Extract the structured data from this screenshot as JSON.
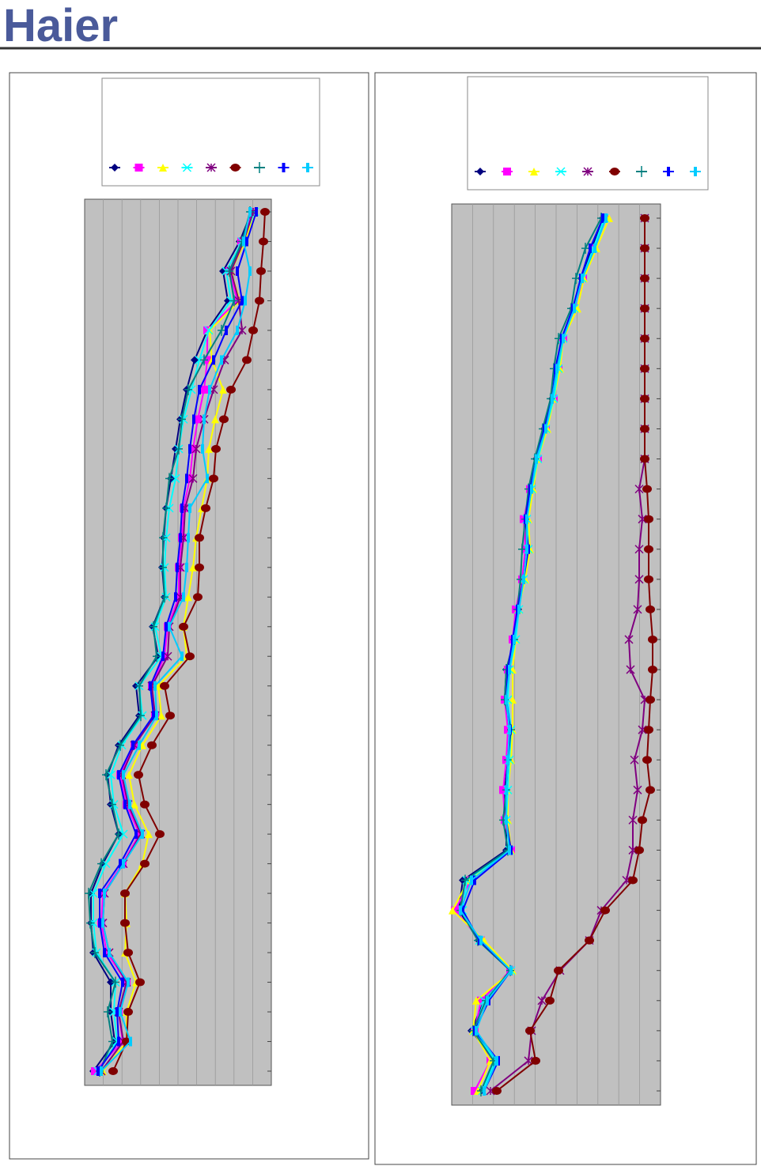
{
  "logo": "Haier",
  "chart_data": [
    {
      "type": "line",
      "orientation": "horizontal",
      "grid": true,
      "xlim": [
        107,
        343
      ],
      "categories": [
        null,
        null,
        null,
        null,
        null,
        null,
        null,
        null,
        null,
        null,
        null,
        null,
        null,
        null,
        null,
        null,
        null,
        null,
        null,
        null,
        null,
        null,
        null,
        null,
        null,
        null,
        null,
        null,
        null,
        null
      ],
      "series": [
        {
          "color": "#000080",
          "marker": "diamond",
          "values": [
            318,
            303,
            282,
            288,
            262,
            246,
            236,
            228,
            222,
            216,
            210,
            207,
            205,
            208,
            193,
            200,
            172,
            176,
            150,
            136,
            140,
            150,
            130,
            115,
            115,
            118,
            140,
            140,
            145,
            118
          ]
        },
        {
          "color": "#ff00ff",
          "marker": "square",
          "values": [
            320,
            305,
            290,
            300,
            262,
            262,
            258,
            250,
            244,
            240,
            232,
            230,
            226,
            226,
            212,
            208,
            192,
            196,
            170,
            152,
            160,
            176,
            155,
            130,
            128,
            135,
            160,
            150,
            155,
            120
          ]
        },
        {
          "color": "#ffff00",
          "marker": "triangle",
          "values": [
            322,
            310,
            292,
            303,
            265,
            268,
            282,
            272,
            264,
            262,
            255,
            248,
            244,
            238,
            232,
            236,
            200,
            204,
            180,
            163,
            170,
            188,
            180,
            158,
            160,
            158,
            172,
            160,
            160,
            130
          ]
        },
        {
          "color": "#00ffff",
          "marker": "x",
          "values": [
            322,
            306,
            286,
            292,
            264,
            252,
            242,
            232,
            226,
            222,
            214,
            210,
            208,
            210,
            196,
            204,
            176,
            180,
            154,
            140,
            144,
            156,
            134,
            118,
            118,
            122,
            146,
            144,
            148,
            124
          ]
        },
        {
          "color": "#800080",
          "marker": "star",
          "values": [
            320,
            308,
            292,
            302,
            306,
            284,
            270,
            258,
            248,
            244,
            234,
            232,
            228,
            228,
            214,
            212,
            192,
            196,
            170,
            154,
            162,
            178,
            156,
            132,
            130,
            138,
            160,
            150,
            156,
            128
          ]
        },
        {
          "color": "#800000",
          "marker": "circle",
          "values": [
            335,
            333,
            330,
            328,
            320,
            312,
            292,
            283,
            273,
            270,
            260,
            252,
            252,
            250,
            232,
            240,
            208,
            215,
            192,
            175,
            183,
            202,
            183,
            158,
            158,
            162,
            177,
            162,
            160,
            143
          ]
        },
        {
          "color": "#008080",
          "marker": "plus",
          "values": [
            316,
            306,
            290,
            296,
            280,
            258,
            238,
            230,
            226,
            214,
            210,
            206,
            206,
            208,
            194,
            198,
            176,
            178,
            152,
            134,
            142,
            150,
            128,
            112,
            114,
            120,
            146,
            136,
            142,
            126
          ]
        },
        {
          "color": "#0000ff",
          "marker": "bar",
          "values": [
            324,
            312,
            300,
            306,
            286,
            270,
            252,
            245,
            240,
            236,
            230,
            228,
            224,
            222,
            210,
            206,
            190,
            194,
            168,
            150,
            158,
            172,
            152,
            126,
            126,
            132,
            155,
            148,
            150,
            124
          ]
        },
        {
          "color": "#00ccff",
          "marker": "bar",
          "values": [
            316,
            308,
            316,
            310,
            300,
            280,
            265,
            258,
            256,
            262,
            240,
            238,
            236,
            232,
            214,
            230,
            196,
            198,
            176,
            156,
            164,
            180,
            156,
            132,
            130,
            138,
            162,
            152,
            165,
            128
          ]
        }
      ]
    },
    {
      "type": "line",
      "orientation": "horizontal",
      "grid": true,
      "xlim": [
        571,
        835
      ],
      "categories": [
        null,
        null,
        null,
        null,
        null,
        null,
        null,
        null,
        null,
        null,
        null,
        null,
        null,
        null,
        null,
        null,
        null,
        null,
        null,
        null,
        null,
        null,
        null,
        null,
        null,
        null,
        null,
        null,
        null,
        null
      ],
      "series": [
        {
          "color": "#000080",
          "marker": "diamond",
          "values": [
            762,
            748,
            735,
            724,
            710,
            704,
            698,
            688,
            678,
            672,
            665,
            666,
            660,
            655,
            650,
            640,
            638,
            644,
            642,
            638,
            640,
            640,
            585,
            580,
            605,
            645,
            612,
            596,
            625,
            608
          ]
        },
        {
          "color": "#ff00ff",
          "marker": "square",
          "values": [
            764,
            750,
            737,
            726,
            712,
            706,
            700,
            690,
            680,
            670,
            662,
            664,
            660,
            652,
            648,
            642,
            638,
            642,
            640,
            636,
            638,
            646,
            595,
            575,
            608,
            645,
            608,
            600,
            620,
            600
          ]
        },
        {
          "color": "#ffff00",
          "marker": "triangle",
          "values": [
            770,
            754,
            738,
            730,
            712,
            708,
            700,
            692,
            680,
            674,
            668,
            670,
            664,
            655,
            652,
            648,
            648,
            648,
            646,
            642,
            642,
            646,
            592,
            572,
            612,
            648,
            602,
            598,
            620,
            604
          ]
        },
        {
          "color": "#00ffff",
          "marker": "x",
          "values": [
            764,
            750,
            736,
            726,
            712,
            706,
            700,
            690,
            680,
            672,
            666,
            668,
            662,
            656,
            652,
            644,
            642,
            646,
            644,
            642,
            640,
            644,
            590,
            585,
            606,
            646,
            612,
            600,
            626,
            610
          ]
        },
        {
          "color": "#800080",
          "marker": "star",
          "values": [
            815,
            815,
            815,
            815,
            815,
            815,
            815,
            815,
            815,
            808,
            812,
            808,
            808,
            806,
            795,
            797,
            815,
            812,
            802,
            806,
            800,
            800,
            792,
            760,
            745,
            708,
            685,
            672,
            668,
            620
          ]
        },
        {
          "color": "#800000",
          "marker": "circle",
          "values": [
            815,
            815,
            815,
            815,
            815,
            815,
            815,
            815,
            815,
            818,
            820,
            820,
            820,
            822,
            825,
            825,
            822,
            820,
            818,
            822,
            812,
            808,
            800,
            765,
            745,
            706,
            695,
            670,
            677,
            628
          ]
        },
        {
          "color": "#008080",
          "marker": "plus",
          "values": [
            760,
            740,
            728,
            722,
            706,
            700,
            696,
            686,
            676,
            668,
            664,
            660,
            658,
            654,
            650,
            640,
            638,
            646,
            642,
            640,
            636,
            642,
            588,
            582,
            604,
            645,
            614,
            598,
            624,
            608
          ]
        },
        {
          "color": "#0000ff",
          "marker": "bar",
          "values": [
            762,
            746,
            734,
            724,
            710,
            702,
            698,
            688,
            678,
            670,
            664,
            668,
            662,
            654,
            648,
            642,
            640,
            645,
            642,
            640,
            640,
            646,
            600,
            585,
            606,
            646,
            618,
            600,
            630,
            612
          ]
        },
        {
          "color": "#00ccff",
          "marker": "bar",
          "values": [
            766,
            752,
            736,
            726,
            712,
            704,
            698,
            690,
            678,
            672,
            666,
            666,
            662,
            656,
            650,
            644,
            640,
            644,
            642,
            640,
            640,
            644,
            596,
            582,
            608,
            646,
            616,
            602,
            628,
            612
          ]
        }
      ]
    }
  ]
}
